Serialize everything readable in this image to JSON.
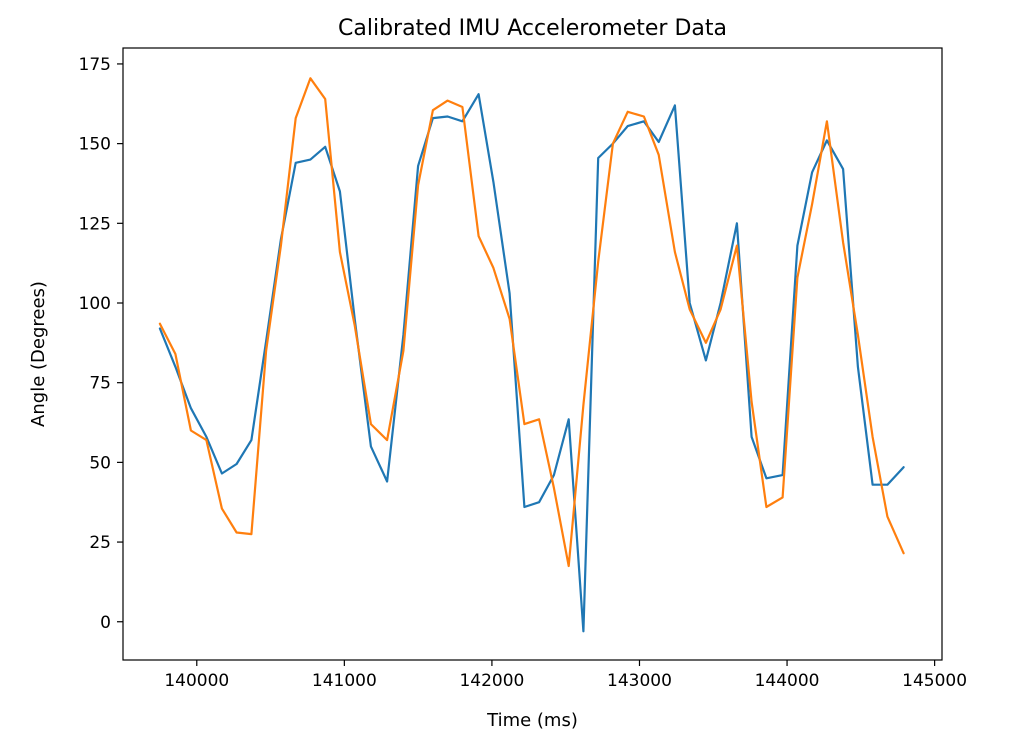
{
  "chart_data": {
    "type": "line",
    "title": "Calibrated IMU Accelerometer Data",
    "xlabel": "Time (ms)",
    "ylabel": "Angle (Degrees)",
    "xlim": [
      139500,
      145050
    ],
    "ylim": [
      -12,
      180
    ],
    "xticks": [
      140000,
      141000,
      142000,
      143000,
      144000,
      145000
    ],
    "yticks": [
      0,
      25,
      50,
      75,
      100,
      125,
      150,
      175
    ],
    "grid": false,
    "legend": "none",
    "series": [
      {
        "color": "#1f77b4",
        "x": [
          139750,
          139855,
          139960,
          140065,
          140170,
          140270,
          140370,
          140470,
          140570,
          140670,
          140770,
          140870,
          140970,
          141070,
          141180,
          141290,
          141400,
          141500,
          141600,
          141700,
          141800,
          141910,
          142010,
          142120,
          142220,
          142320,
          142420,
          142520,
          142620,
          142720,
          142820,
          142920,
          143030,
          143130,
          143240,
          143340,
          143450,
          143550,
          143660,
          143760,
          143860,
          143970,
          144070,
          144170,
          144270,
          144380,
          144480,
          144580,
          144680,
          144790
        ],
        "y": [
          92,
          80,
          67,
          58,
          46.5,
          49.5,
          57,
          88,
          120,
          144,
          145,
          149,
          135,
          95,
          55,
          44,
          90,
          143,
          158,
          158.5,
          157,
          165.5,
          138,
          103,
          36,
          37.5,
          46,
          63.5,
          -3,
          145.5,
          150,
          155.5,
          157,
          150.5,
          162,
          100,
          82,
          100,
          125,
          58,
          45,
          46,
          118,
          141,
          151,
          142,
          80,
          43,
          43,
          48.5
        ]
      },
      {
        "color": "#ff7f0e",
        "x": [
          139750,
          139855,
          139960,
          140065,
          140170,
          140270,
          140370,
          140470,
          140570,
          140670,
          140770,
          140870,
          140970,
          141070,
          141180,
          141290,
          141400,
          141500,
          141600,
          141700,
          141800,
          141910,
          142010,
          142120,
          142220,
          142320,
          142420,
          142520,
          142620,
          142720,
          142820,
          142920,
          143030,
          143130,
          143240,
          143340,
          143450,
          143550,
          143660,
          143760,
          143860,
          143970,
          144070,
          144170,
          144270,
          144380,
          144480,
          144580,
          144680,
          144790
        ],
        "y": [
          93.5,
          84,
          60,
          57,
          35.5,
          28,
          27.5,
          85,
          118,
          158,
          170.5,
          164,
          116,
          93,
          62,
          57,
          85,
          137,
          160.5,
          163.5,
          161.5,
          121,
          111,
          95,
          62,
          63.5,
          42,
          17.5,
          68,
          113,
          150,
          160,
          158.5,
          146.5,
          116,
          98,
          87.5,
          98,
          118,
          69,
          36,
          39,
          108,
          131,
          157,
          119,
          90,
          58,
          33,
          21.5
        ]
      }
    ]
  }
}
